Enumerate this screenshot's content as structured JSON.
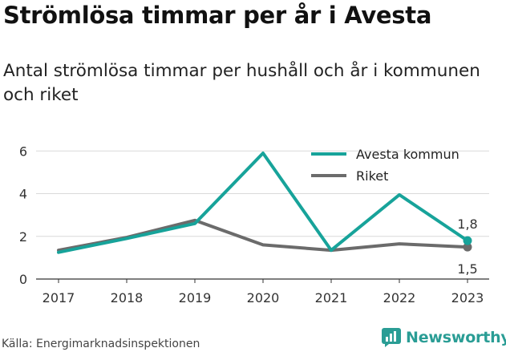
{
  "title": "Strömlösa timmar per år i Avesta",
  "subtitle": "Antal strömlösa timmar per hushåll och år i kommunen och riket",
  "source": "Källa: Energimarknadsinspektionen",
  "brand": {
    "name": "Newsworthy",
    "icon": "newsworthy-logo-icon",
    "color": "#2a9d95"
  },
  "chart_data": {
    "type": "line",
    "x": [
      "2017",
      "2018",
      "2019",
      "2020",
      "2021",
      "2022",
      "2023"
    ],
    "yticks": [
      0,
      2,
      4,
      6
    ],
    "ylim": [
      0,
      6.5
    ],
    "grid": true,
    "legend_position": "top-right",
    "series": [
      {
        "name": "Avesta kommun",
        "color": "#17a39a",
        "values": [
          1.25,
          1.9,
          2.6,
          5.9,
          1.35,
          3.95,
          1.8
        ]
      },
      {
        "name": "Riket",
        "color": "#6b6b6b",
        "values": [
          1.35,
          1.95,
          2.75,
          1.6,
          1.35,
          1.65,
          1.5
        ]
      }
    ],
    "end_labels": [
      "1,8",
      "1,5"
    ]
  }
}
